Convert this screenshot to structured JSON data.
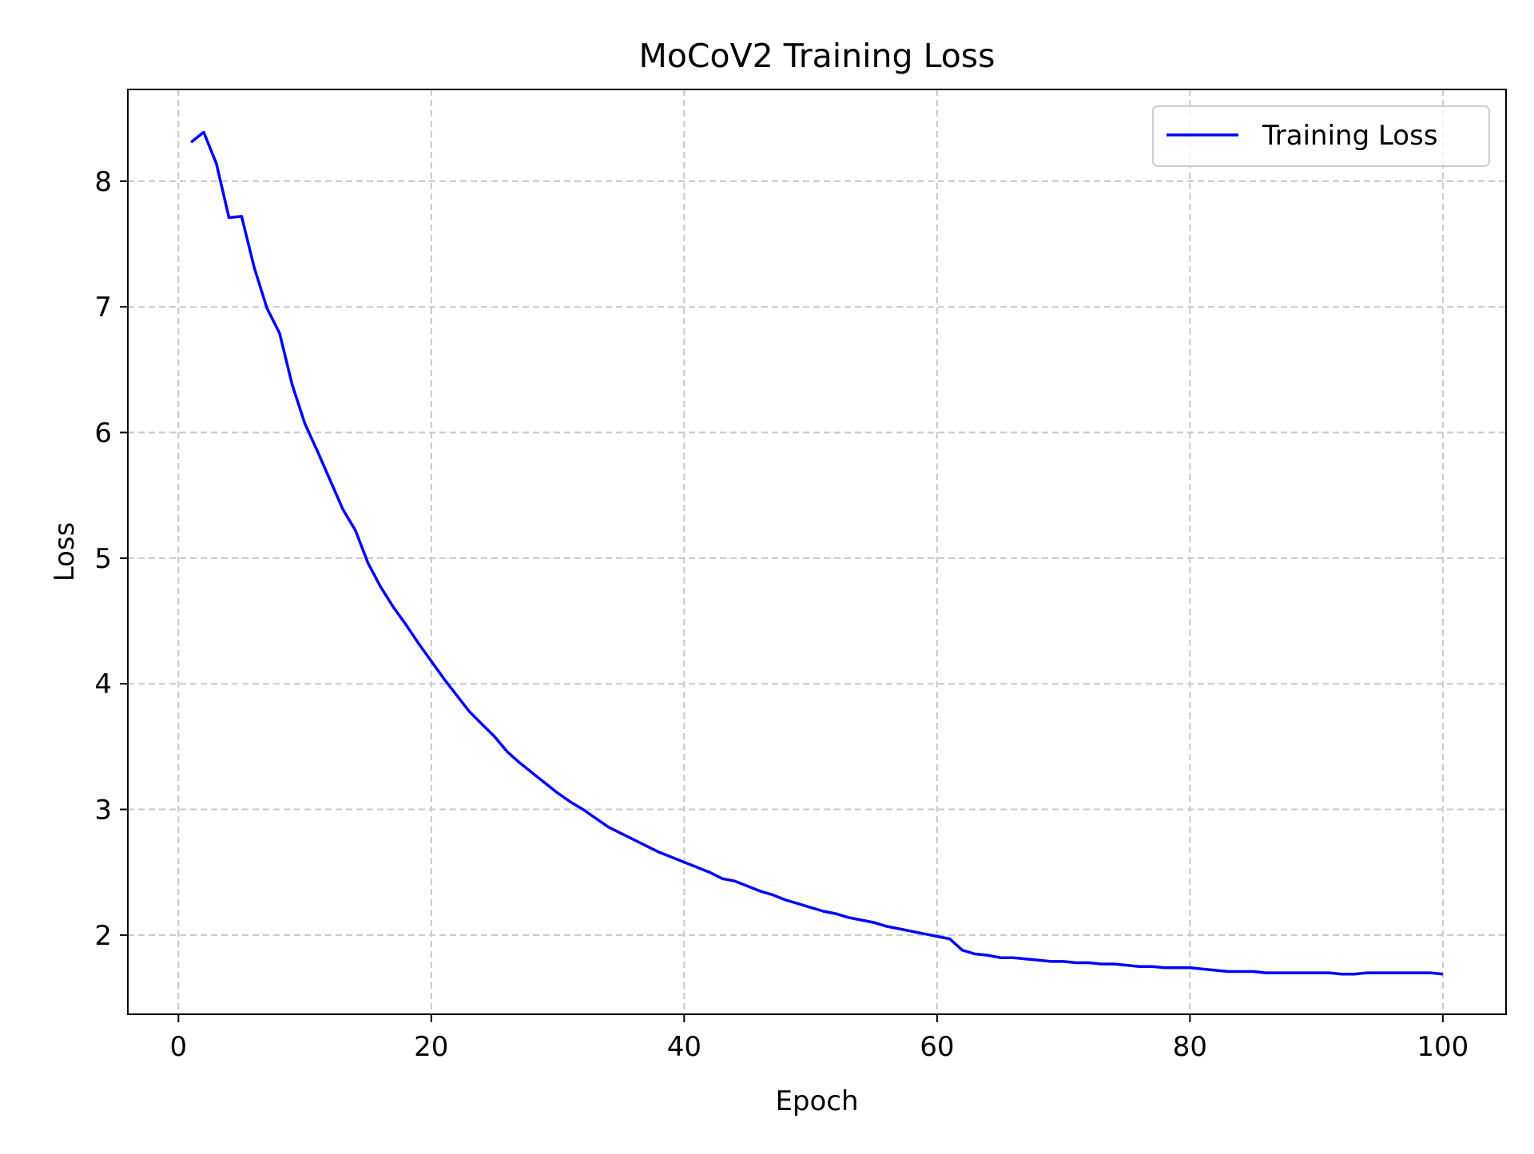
{
  "chart_data": {
    "type": "line",
    "title": "MoCoV2 Training Loss",
    "xlabel": "Epoch",
    "ylabel": "Loss",
    "xlim": [
      -4,
      105
    ],
    "ylim": [
      1.37,
      8.73
    ],
    "xticks": [
      0,
      20,
      40,
      60,
      80,
      100
    ],
    "yticks": [
      2,
      3,
      4,
      5,
      6,
      7,
      8
    ],
    "grid": true,
    "legend": "top-right",
    "series": [
      {
        "name": "Training Loss",
        "color": "#0000ff",
        "x": [
          1,
          2,
          3,
          4,
          5,
          6,
          7,
          8,
          9,
          10,
          11,
          12,
          13,
          14,
          15,
          16,
          17,
          18,
          19,
          20,
          21,
          22,
          23,
          24,
          25,
          26,
          27,
          28,
          29,
          30,
          31,
          32,
          33,
          34,
          35,
          36,
          37,
          38,
          39,
          40,
          41,
          42,
          43,
          44,
          45,
          46,
          47,
          48,
          49,
          50,
          51,
          52,
          53,
          54,
          55,
          56,
          57,
          58,
          59,
          60,
          61,
          62,
          63,
          64,
          65,
          66,
          67,
          68,
          69,
          70,
          71,
          72,
          73,
          74,
          75,
          76,
          77,
          78,
          79,
          80,
          81,
          82,
          83,
          84,
          85,
          86,
          87,
          88,
          89,
          90,
          91,
          92,
          93,
          94,
          95,
          96,
          97,
          98,
          99,
          100
        ],
        "values": [
          8.31,
          8.39,
          8.14,
          7.71,
          7.72,
          7.31,
          6.99,
          6.79,
          6.38,
          6.07,
          5.85,
          5.62,
          5.39,
          5.22,
          4.96,
          4.77,
          4.61,
          4.47,
          4.32,
          4.18,
          4.04,
          3.91,
          3.78,
          3.68,
          3.58,
          3.46,
          3.37,
          3.29,
          3.21,
          3.13,
          3.06,
          3.0,
          2.93,
          2.86,
          2.81,
          2.76,
          2.71,
          2.66,
          2.62,
          2.58,
          2.54,
          2.5,
          2.45,
          2.43,
          2.39,
          2.35,
          2.32,
          2.28,
          2.25,
          2.22,
          2.19,
          2.17,
          2.14,
          2.12,
          2.1,
          2.07,
          2.05,
          2.03,
          2.01,
          1.99,
          1.97,
          1.88,
          1.85,
          1.84,
          1.82,
          1.82,
          1.81,
          1.8,
          1.79,
          1.79,
          1.78,
          1.78,
          1.77,
          1.77,
          1.76,
          1.75,
          1.75,
          1.74,
          1.74,
          1.74,
          1.73,
          1.72,
          1.71,
          1.71,
          1.71,
          1.7,
          1.7,
          1.7,
          1.7,
          1.7,
          1.7,
          1.69,
          1.69,
          1.7,
          1.7,
          1.7,
          1.7,
          1.7,
          1.7,
          1.69
        ]
      }
    ]
  }
}
